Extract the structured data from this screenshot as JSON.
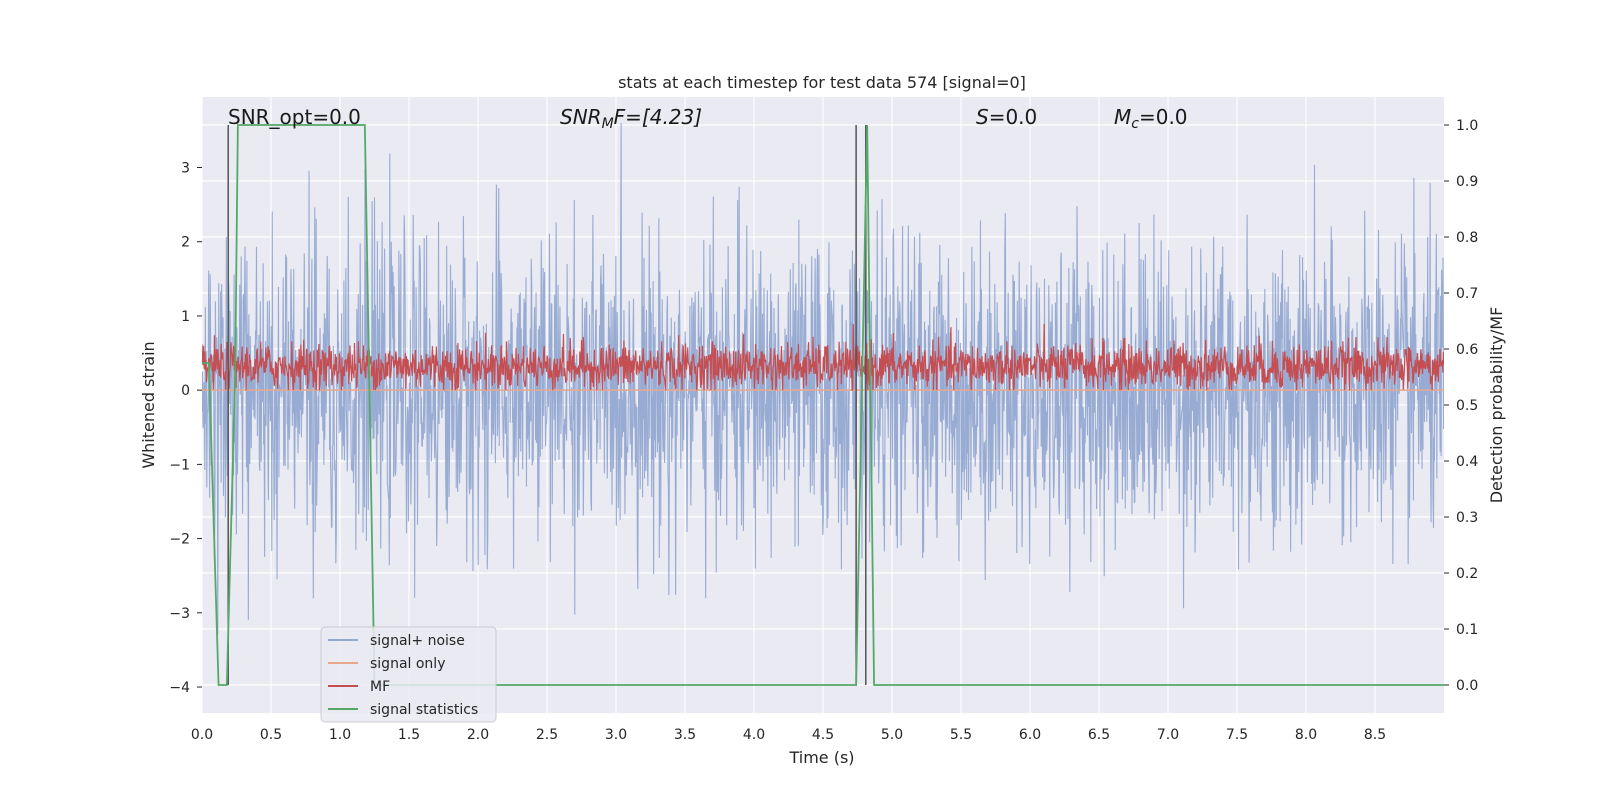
{
  "chart_data": {
    "type": "line",
    "title": "stats at each timestep for test data 574 [signal=0]",
    "xlabel": "Time (s)",
    "ylabel": "Whitened strain",
    "y2label": "Detection probability/MF",
    "xlim": [
      0,
      9.0
    ],
    "ylim": [
      -4.35,
      3.95
    ],
    "y2lim": [
      -0.05,
      1.05
    ],
    "xticks": [
      "0.0",
      "0.5",
      "1.0",
      "1.5",
      "2.0",
      "2.5",
      "3.0",
      "3.5",
      "4.0",
      "4.5",
      "5.0",
      "5.5",
      "6.0",
      "6.5",
      "7.0",
      "7.5",
      "8.0",
      "8.5"
    ],
    "yticks": [
      "3",
      "2",
      "1",
      "0",
      "−1",
      "−2",
      "−3",
      "−4"
    ],
    "y2ticks": [
      "1.0",
      "0.9",
      "0.8",
      "0.7",
      "0.6",
      "0.5",
      "0.4",
      "0.3",
      "0.2",
      "0.1",
      "0.0"
    ],
    "grid": true,
    "legend_position": "lower-left",
    "annotations": {
      "snr_opt": "SNR_opt=0.0",
      "snr_mf_main": "SNR",
      "snr_mf_sub": "M",
      "snr_mf_rest": "F=[4.23]",
      "s": "S",
      "s_rest": "=0.0",
      "mc_main": "M",
      "mc_sub": "c",
      "mc_rest": "=0.0"
    },
    "series": [
      {
        "name": "signal+ noise",
        "color": "#92a8d1",
        "axis": "left",
        "kind": "noise",
        "amplitude_std": 1.0,
        "range": [
          -3.5,
          3.6
        ]
      },
      {
        "name": "signal only",
        "color": "#e8a88b",
        "axis": "left",
        "x": [
          0.0,
          9.0
        ],
        "y": [
          0.0,
          0.0
        ]
      },
      {
        "name": "MF",
        "color": "#c44e52",
        "axis": "left",
        "kind": "mf",
        "range": [
          0.0,
          1.0
        ]
      },
      {
        "name": "signal statistics",
        "color": "#55a868",
        "axis": "right",
        "x": [
          0.0,
          0.05,
          0.12,
          0.18,
          0.24,
          0.26,
          0.3,
          1.18,
          1.25,
          4.7,
          4.74,
          4.78,
          4.82,
          4.87,
          5.0,
          9.0
        ],
        "y": [
          0.575,
          0.575,
          0.0,
          0.0,
          0.55,
          1.0,
          1.0,
          1.0,
          0.0,
          0.0,
          0.0,
          0.5,
          1.0,
          0.0,
          0.0,
          0.0
        ]
      }
    ],
    "vlines": [
      0.19,
      4.74,
      4.81
    ]
  }
}
